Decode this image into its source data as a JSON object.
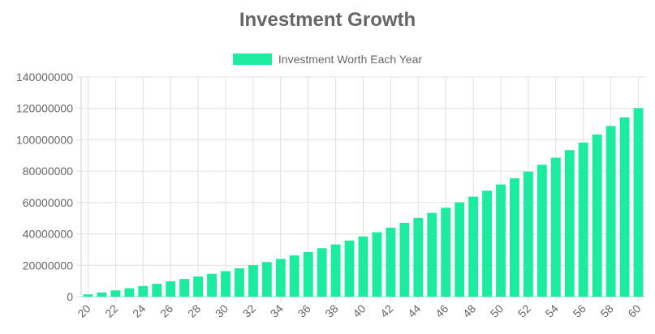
{
  "chart_data": {
    "type": "bar",
    "title": "Investment Growth",
    "legend_position": "top",
    "grid": true,
    "categories": [
      "20",
      "21",
      "22",
      "23",
      "24",
      "25",
      "26",
      "27",
      "28",
      "29",
      "30",
      "31",
      "32",
      "33",
      "34",
      "35",
      "36",
      "37",
      "38",
      "39",
      "40",
      "41",
      "42",
      "43",
      "44",
      "45",
      "46",
      "47",
      "48",
      "49",
      "50",
      "51",
      "52",
      "53",
      "54",
      "55",
      "56",
      "57",
      "58",
      "59",
      "60"
    ],
    "series": [
      {
        "name": "Investment Worth Each Year",
        "color": "#1bec9f",
        "values": [
          1500000,
          2700000,
          4000000,
          5400000,
          6800000,
          8200000,
          9800000,
          11300000,
          12900000,
          14600000,
          16300000,
          18100000,
          20100000,
          22100000,
          24100000,
          26300000,
          28500000,
          30900000,
          33300000,
          35800000,
          38400000,
          41100000,
          44000000,
          47000000,
          50200000,
          53400000,
          56700000,
          60100000,
          63800000,
          67600000,
          71500000,
          75500000,
          79700000,
          84100000,
          88600000,
          93400000,
          98300000,
          103400000,
          108800000,
          114300000,
          120200000
        ]
      }
    ],
    "ylim": [
      0,
      140000000
    ],
    "y_ticks": [
      "0",
      "20000000",
      "40000000",
      "60000000",
      "80000000",
      "100000000",
      "120000000",
      "140000000"
    ],
    "x_tick_labels": [
      "20",
      "22",
      "24",
      "26",
      "28",
      "30",
      "32",
      "34",
      "36",
      "38",
      "40",
      "42",
      "44",
      "46",
      "48",
      "50",
      "52",
      "54",
      "56",
      "58",
      "60"
    ],
    "xlabel": "",
    "ylabel": ""
  }
}
